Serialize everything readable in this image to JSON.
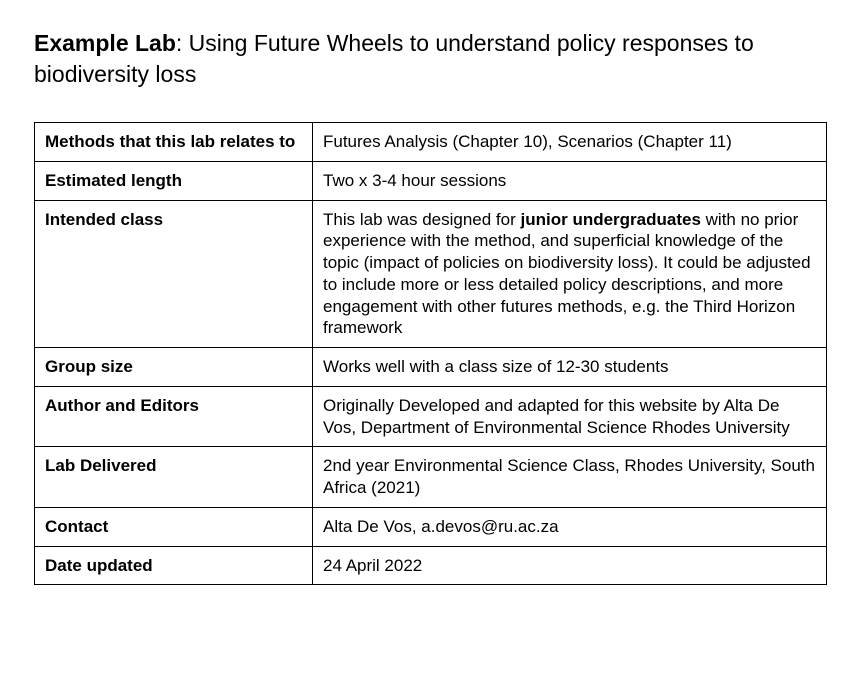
{
  "title_label": "Example Lab",
  "title_text": ": Using Future Wheels to understand policy responses to biodiversity loss",
  "rows": [
    {
      "key": "Methods that this lab relates to",
      "value": "Futures Analysis (Chapter 10), Scenarios (Chapter 11)"
    },
    {
      "key": "Estimated length",
      "value": "Two x 3-4 hour sessions"
    },
    {
      "key": "Intended class",
      "value_pre": "This lab was designed for ",
      "value_bold": "junior undergraduates",
      "value_post": " with no prior experience with the method, and superficial knowledge of the topic (impact of policies on biodiversity loss). It could be adjusted to include more or less detailed policy descriptions, and more engagement with other futures methods, e.g. the Third Horizon framework"
    },
    {
      "key": "Group size",
      "value": "Works well with a class size of 12-30 students"
    },
    {
      "key": "Author and Editors",
      "value": "Originally Developed and adapted for this website by Alta De Vos, Department of Environmental Science Rhodes University"
    },
    {
      "key": "Lab Delivered",
      "value": "2nd year Environmental Science Class, Rhodes University, South Africa (2021)"
    },
    {
      "key": "Contact",
      "value": "Alta De Vos, a.devos@ru.ac.za"
    },
    {
      "key": "Date updated",
      "value": "24 April 2022"
    }
  ]
}
